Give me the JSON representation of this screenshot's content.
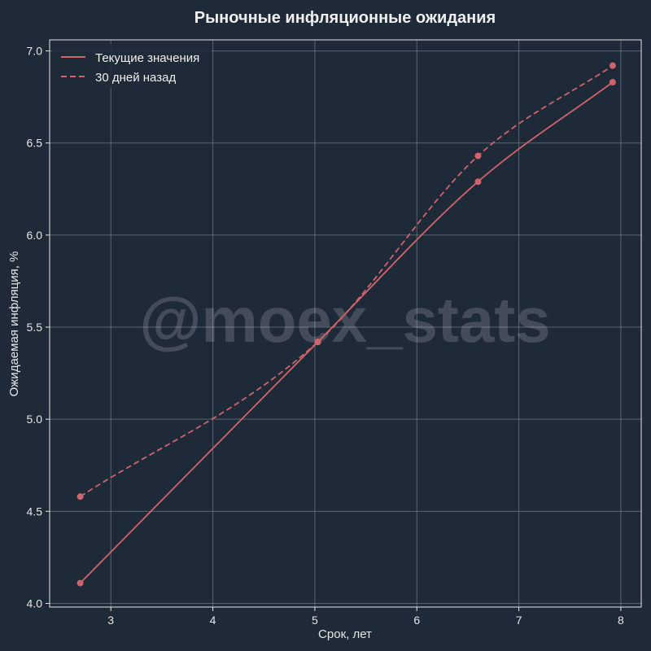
{
  "chart_data": {
    "type": "line",
    "title": "Рыночные инфляционные ожидания",
    "xlabel": "Срок, лет",
    "ylabel": "Ожидаемая инфляция, %",
    "xlim": [
      2.4,
      8.2
    ],
    "ylim": [
      3.98,
      7.06
    ],
    "xticks": [
      "3",
      "4",
      "5",
      "6",
      "7",
      "8"
    ],
    "yticks": [
      "4.0",
      "4.5",
      "5.0",
      "5.5",
      "6.0",
      "6.5",
      "7.0"
    ],
    "grid": true,
    "legend_position": "top-left",
    "watermark": "@moex_stats",
    "series": [
      {
        "name": "Текущие значения",
        "style": "solid",
        "color": "#d0636b",
        "x": [
          2.7,
          5.03,
          6.6,
          7.92
        ],
        "y": [
          4.11,
          5.42,
          6.29,
          6.83
        ]
      },
      {
        "name": "30 дней назад",
        "style": "dashed",
        "color": "#d0636b",
        "x": [
          2.7,
          5.03,
          6.6,
          7.92
        ],
        "y": [
          4.58,
          5.42,
          6.43,
          6.92
        ]
      }
    ]
  }
}
